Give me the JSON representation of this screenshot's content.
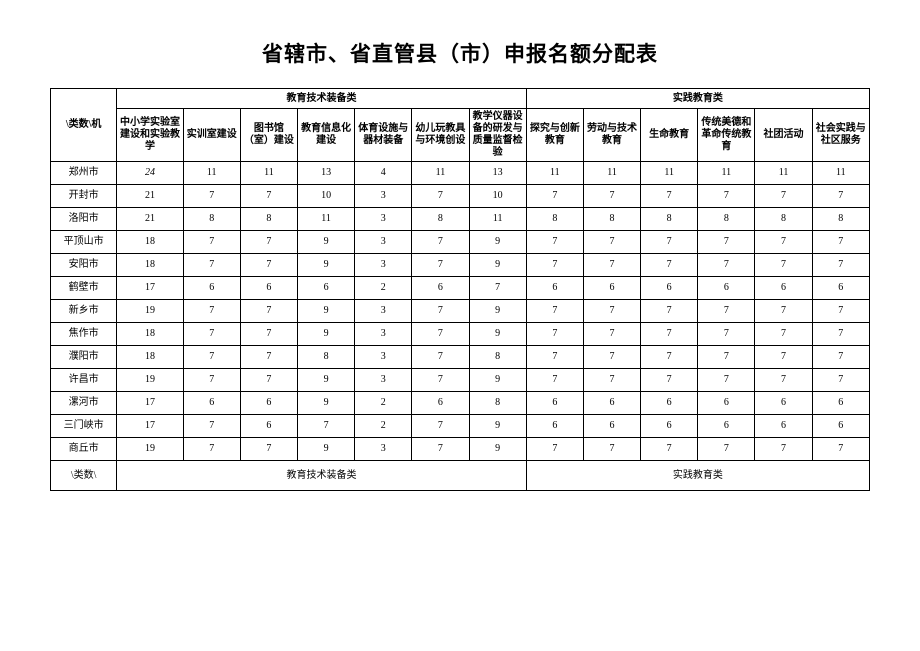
{
  "title": "省辖市、省直管县（市）申报名额分配表",
  "corner_top": "\\类数\\机",
  "corner_bottom": "\\类数\\",
  "group1": "教育技术装备类",
  "group2": "实践教育类",
  "headers1": [
    "中小学实验室建设和实验教学",
    "实训室建设",
    "图书馆（室）建设",
    "教育信息化建设",
    "体育设施与器材装备",
    "幼儿玩教具与环境创设",
    "教学仪器设备的研发与质量监督检验"
  ],
  "headers2": [
    "探究与创新教育",
    "劳动与技术教育",
    "生命教育",
    "传统美德和革命传统教育",
    "社团活动",
    "社会实践与社区服务"
  ],
  "rows": [
    {
      "city": "郑州市",
      "v": [
        "24",
        "11",
        "11",
        "13",
        "4",
        "11",
        "13",
        "11",
        "11",
        "11",
        "11",
        "11",
        "11"
      ],
      "italic": true
    },
    {
      "city": "开封市",
      "v": [
        "21",
        "7",
        "7",
        "10",
        "3",
        "7",
        "10",
        "7",
        "7",
        "7",
        "7",
        "7",
        "7"
      ]
    },
    {
      "city": "洛阳市",
      "v": [
        "21",
        "8",
        "8",
        "11",
        "3",
        "8",
        "11",
        "8",
        "8",
        "8",
        "8",
        "8",
        "8"
      ]
    },
    {
      "city": "平顶山市",
      "v": [
        "18",
        "7",
        "7",
        "9",
        "3",
        "7",
        "9",
        "7",
        "7",
        "7",
        "7",
        "7",
        "7"
      ]
    },
    {
      "city": "安阳市",
      "v": [
        "18",
        "7",
        "7",
        "9",
        "3",
        "7",
        "9",
        "7",
        "7",
        "7",
        "7",
        "7",
        "7"
      ]
    },
    {
      "city": "鹤壁市",
      "v": [
        "17",
        "6",
        "6",
        "6",
        "2",
        "6",
        "7",
        "6",
        "6",
        "6",
        "6",
        "6",
        "6"
      ]
    },
    {
      "city": "新乡市",
      "v": [
        "19",
        "7",
        "7",
        "9",
        "3",
        "7",
        "9",
        "7",
        "7",
        "7",
        "7",
        "7",
        "7"
      ]
    },
    {
      "city": "焦作市",
      "v": [
        "18",
        "7",
        "7",
        "9",
        "3",
        "7",
        "9",
        "7",
        "7",
        "7",
        "7",
        "7",
        "7"
      ]
    },
    {
      "city": "濮阳市",
      "v": [
        "18",
        "7",
        "7",
        "8",
        "3",
        "7",
        "8",
        "7",
        "7",
        "7",
        "7",
        "7",
        "7"
      ]
    },
    {
      "city": "许昌市",
      "v": [
        "19",
        "7",
        "7",
        "9",
        "3",
        "7",
        "9",
        "7",
        "7",
        "7",
        "7",
        "7",
        "7"
      ]
    },
    {
      "city": "漯河市",
      "v": [
        "17",
        "6",
        "6",
        "9",
        "2",
        "6",
        "8",
        "6",
        "6",
        "6",
        "6",
        "6",
        "6"
      ]
    },
    {
      "city": "三门峡市",
      "v": [
        "17",
        "7",
        "6",
        "7",
        "2",
        "7",
        "9",
        "6",
        "6",
        "6",
        "6",
        "6",
        "6"
      ]
    },
    {
      "city": "商丘市",
      "v": [
        "19",
        "7",
        "7",
        "9",
        "3",
        "7",
        "9",
        "7",
        "7",
        "7",
        "7",
        "7",
        "7"
      ]
    }
  ]
}
